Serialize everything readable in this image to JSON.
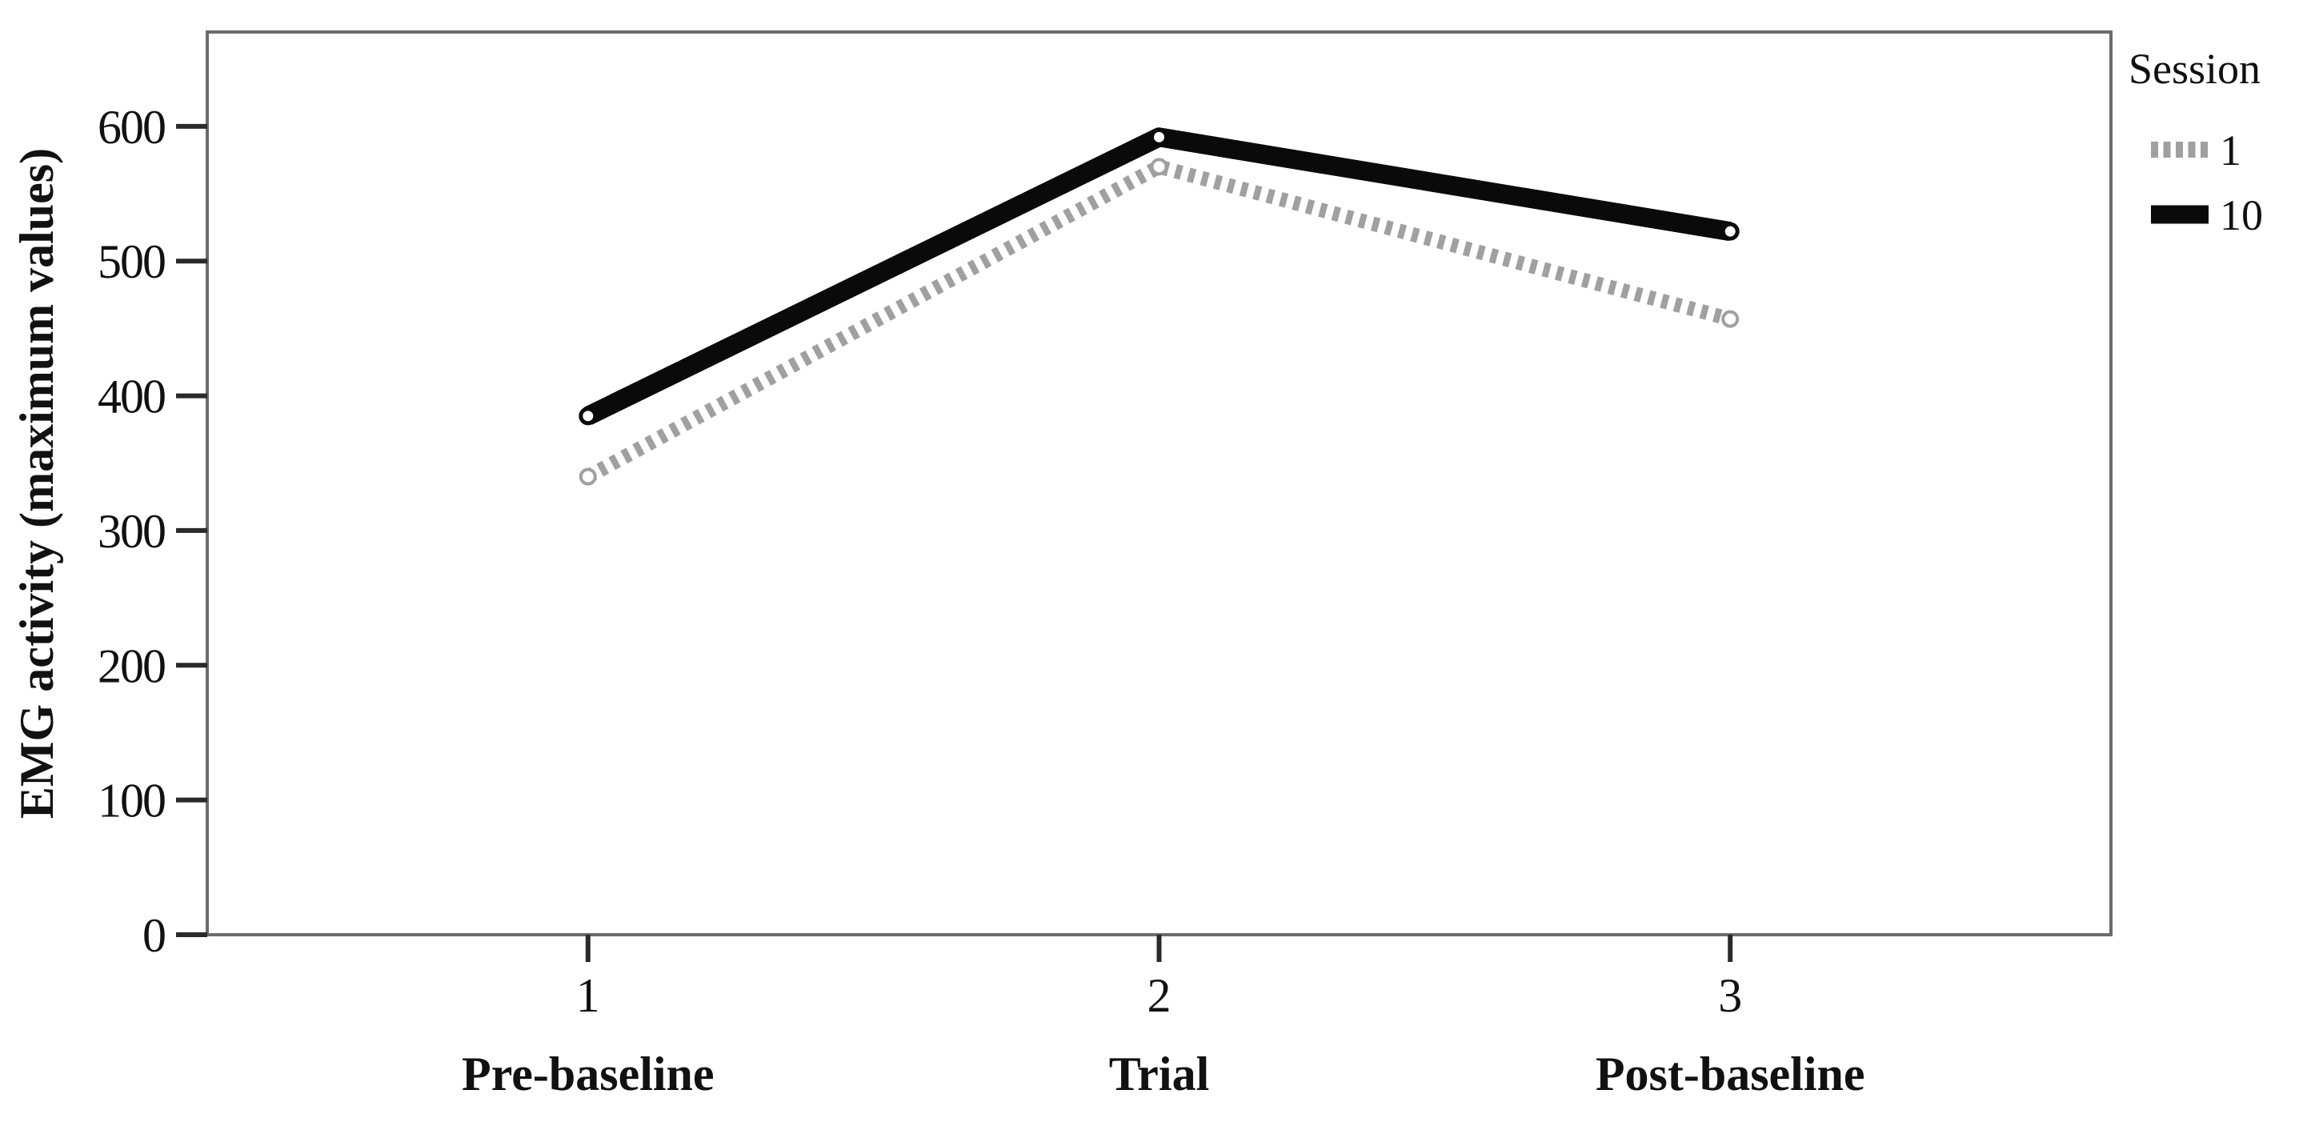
{
  "chart_data": {
    "type": "line",
    "title": "",
    "xlabel": "",
    "ylabel": "EMG activity (maximum values)",
    "categories": [
      "1",
      "2",
      "3"
    ],
    "category_sublabels": [
      "Pre-baseline",
      "Trial",
      "Post-baseline"
    ],
    "yticks": [
      0,
      100,
      200,
      300,
      400,
      500,
      600
    ],
    "ylim": [
      0,
      670
    ],
    "grid": false,
    "legend": {
      "title": "Session",
      "position": "top-right-outside",
      "entries": [
        {
          "label": "1",
          "style": "dashed",
          "color": "#a0a0a0"
        },
        {
          "label": "10",
          "style": "solid",
          "color": "#0a0a0a"
        }
      ]
    },
    "series": [
      {
        "name": "1",
        "style": "dashed",
        "color": "#a0a0a0",
        "line_width": 18,
        "values": [
          340,
          570,
          457
        ]
      },
      {
        "name": "10",
        "style": "solid",
        "color": "#0a0a0a",
        "line_width": 24,
        "values": [
          385,
          592,
          522
        ]
      }
    ]
  },
  "colors": {
    "background": "#ffffff",
    "frame": "#6b6b6b",
    "tick": "#2a2a2a",
    "text": "#111111",
    "marker_fill": "#ffffff"
  }
}
